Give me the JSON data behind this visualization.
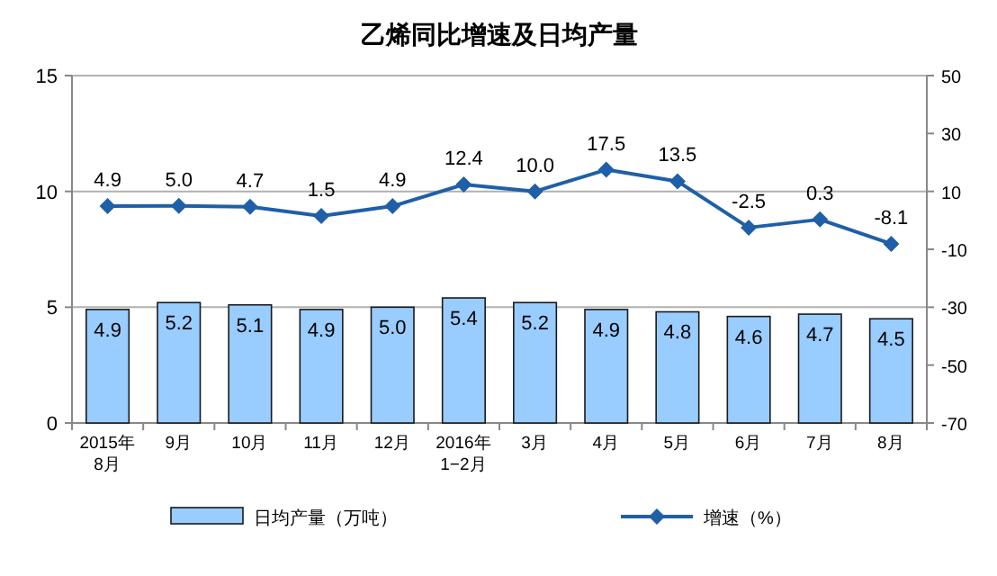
{
  "chart_data": {
    "type": "bar",
    "title": "乙烯同比增速及日均产量",
    "categories": [
      "2015年\n8月",
      "9月",
      "10月",
      "11月",
      "12月",
      "2016年\n1−2月",
      "3月",
      "4月",
      "5月",
      "6月",
      "7月",
      "8月"
    ],
    "series": [
      {
        "name": "日均产量（万吨）",
        "color": "#99ccff",
        "values": [
          4.9,
          5.2,
          5.1,
          4.9,
          5.0,
          5.4,
          5.2,
          4.9,
          4.8,
          4.6,
          4.7,
          4.5
        ],
        "value_labels": [
          "4.9",
          "5.2",
          "5.1",
          "4.9",
          "5.0",
          "5.4",
          "5.2",
          "4.9",
          "4.8",
          "4.6",
          "4.7",
          "4.5"
        ]
      },
      {
        "name": "增速（%）",
        "type": "line",
        "axis": "y2",
        "color": "#1f5fa8",
        "marker": "diamond",
        "values": [
          4.9,
          5.0,
          4.7,
          1.5,
          4.9,
          12.4,
          10.0,
          17.5,
          13.5,
          -2.5,
          0.3,
          -8.1
        ],
        "value_labels": [
          "4.9",
          "5.0",
          "4.7",
          "1.5",
          "4.9",
          "12.4",
          "10.0",
          "17.5",
          "13.5",
          "-2.5",
          "0.3",
          "-8.1"
        ]
      }
    ],
    "ylim": [
      0,
      15
    ],
    "yticks": [
      0,
      5,
      10,
      15
    ],
    "y2lim": [
      -70,
      50
    ],
    "y2ticks": [
      -70,
      -50,
      -30,
      -10,
      10,
      30,
      50
    ],
    "grid": "y",
    "legend": "bottom"
  }
}
